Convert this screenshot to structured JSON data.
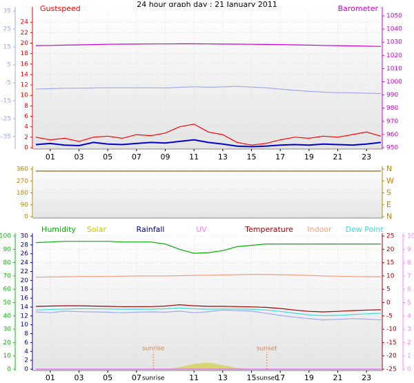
{
  "chart_data": [
    {
      "type": "line",
      "title": "24 hour graph day : 21 January 2011",
      "x": [
        0,
        1,
        2,
        3,
        4,
        5,
        6,
        7,
        8,
        9,
        10,
        11,
        12,
        13,
        14,
        15,
        16,
        17,
        18,
        19,
        20,
        21,
        22,
        23,
        24
      ],
      "xlim": [
        0,
        24
      ],
      "xticks": [
        {
          "value": 1,
          "label": "01"
        },
        {
          "value": 3,
          "label": "03"
        },
        {
          "value": 5,
          "label": "05"
        },
        {
          "value": 7,
          "label": "07"
        },
        {
          "value": 9,
          "label": "09"
        },
        {
          "value": 11,
          "label": "11"
        },
        {
          "value": 13,
          "label": "13"
        },
        {
          "value": 15,
          "label": "15"
        },
        {
          "value": 17,
          "label": "17"
        },
        {
          "value": 19,
          "label": "19"
        },
        {
          "value": 21,
          "label": "21"
        },
        {
          "value": 23,
          "label": "23"
        }
      ],
      "grid": true,
      "axes": {
        "y": {
          "lim": [
            0,
            26.4
          ],
          "ticks": [
            0,
            2,
            4,
            6,
            8,
            10,
            12,
            14,
            16,
            18,
            20,
            22,
            24
          ],
          "color": "#e00000"
        },
        "y2": {
          "lim": [
            950,
            1054.7
          ],
          "ticks": [
            950,
            960,
            970,
            980,
            990,
            1000,
            1010,
            1020,
            1030,
            1040,
            1050
          ],
          "color": "#cc00cc"
        },
        "y3": {
          "lim": [
            -41.2,
            35.8
          ],
          "ticks": [
            35,
            25,
            15,
            5,
            -5,
            -15,
            -25,
            -35
          ],
          "color": "#a0a8f0"
        }
      },
      "series": [
        {
          "name": "Gustspeed",
          "color": "#ff0000",
          "axis": "y",
          "values": [
            2,
            1.5,
            1.8,
            1.2,
            2,
            2.2,
            1.8,
            2.5,
            2.3,
            2.8,
            4,
            4.5,
            3,
            2.5,
            1,
            0.5,
            0.8,
            1.5,
            2,
            1.8,
            2.2,
            2,
            2.5,
            3,
            2.2
          ]
        },
        {
          "color": "#0000d0",
          "axis": "y",
          "values": [
            0.6,
            0.8,
            0.5,
            0.4,
            1,
            0.7,
            0.6,
            0.8,
            1,
            0.9,
            1.2,
            1.5,
            1,
            0.7,
            0.3,
            0.2,
            0.3,
            0.5,
            0.6,
            0.5,
            0.7,
            0.6,
            0.5,
            0.7,
            1
          ]
        },
        {
          "name": "Barometer",
          "color": "#cc00cc",
          "axis": "y2",
          "values": [
            1027.5,
            1027.6,
            1027.8,
            1028,
            1028.2,
            1028.4,
            1028.5,
            1028.6,
            1028.7,
            1028.7,
            1028.8,
            1028.8,
            1028.7,
            1028.6,
            1028.5,
            1028.4,
            1028.3,
            1028.2,
            1028,
            1027.8,
            1027.6,
            1027.4,
            1027.2,
            1027,
            1026.8
          ]
        },
        {
          "color": "#a0a8f0",
          "axis": "y3",
          "values": [
            -8.5,
            -8.3,
            -8,
            -8,
            -7.9,
            -7.8,
            -7.8,
            -7.8,
            -7.8,
            -7.9,
            -7.5,
            -7.2,
            -7.5,
            -7.3,
            -7,
            -7.4,
            -7.8,
            -8.5,
            -9.2,
            -9.8,
            -10.2,
            -10.5,
            -10.6,
            -10.8,
            -11
          ]
        }
      ]
    },
    {
      "type": "line",
      "x": [
        0,
        1,
        2,
        3,
        4,
        5,
        6,
        7,
        8,
        9,
        10,
        11,
        12,
        13,
        14,
        15,
        16,
        17,
        18,
        19,
        20,
        21,
        22,
        23,
        24
      ],
      "xlim": [
        0,
        24
      ],
      "grid": true,
      "axes": {
        "y": {
          "lim": [
            0,
            360
          ],
          "ticks": [
            0,
            90,
            180,
            270,
            360
          ],
          "color": "#c08000"
        },
        "y2": {
          "lim": [
            0,
            360
          ],
          "ticks": [
            {
              "value": 360,
              "label": "N"
            },
            {
              "value": 270,
              "label": "W"
            },
            {
              "value": 180,
              "label": "S"
            },
            {
              "value": 90,
              "label": "E"
            },
            {
              "value": 0,
              "label": "N"
            }
          ],
          "color": "#c08000"
        }
      },
      "series": [
        {
          "color": "#a06000",
          "axis": "y",
          "values": [
            345,
            345,
            345,
            345,
            345,
            345,
            345,
            345,
            345,
            345,
            345,
            345,
            345,
            345,
            345,
            345,
            345,
            345,
            345,
            345,
            345,
            345,
            345,
            345,
            345
          ]
        }
      ]
    },
    {
      "type": "line",
      "x": [
        0,
        1,
        2,
        3,
        4,
        5,
        6,
        7,
        8,
        9,
        10,
        11,
        12,
        13,
        14,
        15,
        16,
        17,
        18,
        19,
        20,
        21,
        22,
        23,
        24
      ],
      "xlim": [
        0,
        24
      ],
      "xticks": [
        {
          "value": 1,
          "label": "01"
        },
        {
          "value": 3,
          "label": "03"
        },
        {
          "value": 5,
          "label": "05"
        },
        {
          "value": 7,
          "label": "07"
        },
        {
          "value": 11,
          "label": "11"
        },
        {
          "value": 13,
          "label": "13"
        },
        {
          "value": 15,
          "label": "15"
        },
        {
          "value": 17,
          "label": "17"
        },
        {
          "value": 19,
          "label": "19"
        },
        {
          "value": 21,
          "label": "21"
        },
        {
          "value": 23,
          "label": "23"
        }
      ],
      "events": [
        {
          "label": "sunrise",
          "value": 8.17
        },
        {
          "label": "sunset",
          "value": 16.07
        }
      ],
      "grid": true,
      "axes": {
        "y": {
          "lim": [
            0,
            100
          ],
          "ticks": [
            0,
            10,
            20,
            30,
            40,
            50,
            60,
            70,
            80,
            90,
            100
          ],
          "color": "#00c000"
        },
        "y2": {
          "lim": [
            0,
            30
          ],
          "ticks": [
            0,
            2,
            4,
            6,
            8,
            10,
            12,
            14,
            16,
            18,
            20,
            22,
            24,
            26,
            28,
            30
          ],
          "color": "#000080"
        },
        "y3": {
          "lim": [
            -25,
            25
          ],
          "ticks": [
            -25,
            -20,
            -15,
            -10,
            -5,
            0,
            5,
            10,
            15,
            20,
            25
          ],
          "color": "#a00000"
        },
        "y4": {
          "lim": [
            0,
            10
          ],
          "ticks": [
            0,
            1,
            2,
            3,
            4,
            5,
            6,
            7,
            8,
            9,
            10
          ],
          "color": "#ff80ff"
        }
      },
      "series": [
        {
          "name": "Humidity",
          "color": "#00b000",
          "axis": "y",
          "values": [
            95,
            95.5,
            96,
            96,
            96,
            96,
            95.5,
            95.5,
            95.5,
            94,
            90,
            87,
            87.5,
            89,
            92,
            93,
            94,
            94,
            94,
            94,
            94,
            94,
            94,
            94,
            94
          ]
        },
        {
          "name": "Solar",
          "color": "#c8c800",
          "axis": "y",
          "style": "area",
          "values": [
            0,
            0,
            0,
            0,
            0,
            0,
            0,
            0,
            0,
            0,
            1.5,
            4,
            5,
            3,
            1,
            0,
            0,
            0,
            0,
            0,
            0,
            0,
            0,
            0,
            0
          ]
        },
        {
          "name": "Rainfall",
          "color": "#000080",
          "axis": "y2",
          "values": [
            0,
            0,
            0,
            0,
            0,
            0,
            0,
            0,
            0,
            0,
            0,
            0,
            0,
            0,
            0,
            0,
            0,
            0,
            0,
            0,
            0,
            0,
            0,
            0,
            0
          ]
        },
        {
          "name": "UV",
          "color": "#ff80ff",
          "axis": "y4",
          "values": [
            0,
            0,
            0,
            0,
            0,
            0,
            0,
            0,
            0,
            0,
            0,
            0,
            0,
            0,
            0,
            0,
            0,
            0,
            0,
            0,
            0,
            0,
            0,
            0,
            0
          ]
        },
        {
          "color": "#a0a8f0",
          "axis": "y3",
          "values": [
            -3.5,
            -3.8,
            -3.2,
            -3.4,
            -3.5,
            -3.6,
            -3.8,
            -3.6,
            -3.5,
            -3.6,
            -3.2,
            -3.8,
            -3.4,
            -2.8,
            -3,
            -3.2,
            -4,
            -4.8,
            -5.5,
            -6,
            -6.5,
            -6.3,
            -6,
            -6.2,
            -6.5
          ]
        },
        {
          "name": "Temperature",
          "color": "#a00000",
          "axis": "y3",
          "values": [
            -1.4,
            -1.3,
            -1.2,
            -1.2,
            -1.3,
            -1.4,
            -1.5,
            -1.5,
            -1.5,
            -1.3,
            -0.8,
            -1.2,
            -1.4,
            -1.4,
            -1.5,
            -1.6,
            -1.8,
            -2.2,
            -2.8,
            -3.3,
            -3.5,
            -3.3,
            -3,
            -2.8,
            -2.7
          ]
        },
        {
          "name": "Indoor",
          "color": "#f0a080",
          "axis": "y3",
          "values": [
            9.5,
            9.6,
            9.7,
            9.8,
            9.8,
            9.8,
            9.9,
            10,
            10,
            10,
            10.1,
            10.2,
            10.3,
            10.4,
            10.5,
            10.6,
            10.6,
            10.5,
            10.4,
            10.2,
            10,
            9.9,
            9.8,
            9.7,
            9.7
          ]
        },
        {
          "name": "Dew Point",
          "color": "#40d8e0",
          "axis": "y3",
          "values": [
            -2.8,
            -2.6,
            -2.4,
            -2.3,
            -2.3,
            -2.4,
            -2.5,
            -2.5,
            -2.5,
            -2.3,
            -2,
            -2.3,
            -2.5,
            -2.4,
            -2.4,
            -2.5,
            -2.8,
            -3.3,
            -4,
            -4.6,
            -4.9,
            -4.8,
            -4.5,
            -4.2,
            -4
          ]
        }
      ]
    }
  ]
}
